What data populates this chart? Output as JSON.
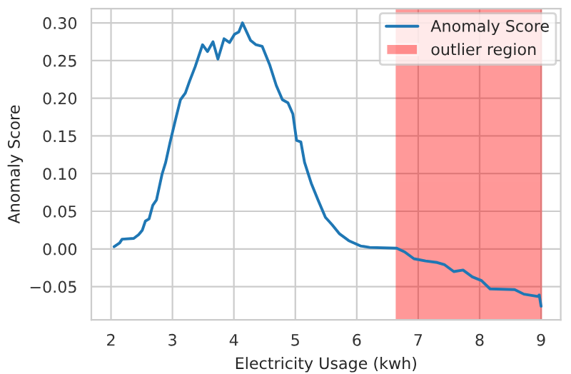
{
  "chart_data": {
    "type": "line",
    "xlabel": "Electricity Usage (kwh)",
    "ylabel": "Anomaly Score",
    "xlim": [
      1.68,
      9.32
    ],
    "ylim": [
      -0.094,
      0.319
    ],
    "xticks": [
      2,
      3,
      4,
      5,
      6,
      7,
      8,
      9
    ],
    "yticks": [
      {
        "value": -0.05,
        "label": "−0.05"
      },
      {
        "value": 0.0,
        "label": "0.00"
      },
      {
        "value": 0.05,
        "label": "0.05"
      },
      {
        "value": 0.1,
        "label": "0.10"
      },
      {
        "value": 0.15,
        "label": "0.15"
      },
      {
        "value": 0.2,
        "label": "0.20"
      },
      {
        "value": 0.25,
        "label": "0.25"
      },
      {
        "value": 0.3,
        "label": "0.30"
      }
    ],
    "grid": true,
    "legend": "top right",
    "series": [
      {
        "name": "Anomaly Score",
        "color": "#1f77b4",
        "x": [
          2.05,
          2.14,
          2.18,
          2.37,
          2.45,
          2.51,
          2.56,
          2.62,
          2.68,
          2.74,
          2.83,
          2.89,
          2.96,
          3.06,
          3.13,
          3.21,
          3.28,
          3.37,
          3.49,
          3.57,
          3.66,
          3.74,
          3.84,
          3.93,
          4.01,
          4.08,
          4.14,
          4.27,
          4.36,
          4.46,
          4.58,
          4.69,
          4.79,
          4.88,
          4.96,
          5.02,
          5.09,
          5.15,
          5.26,
          5.37,
          5.49,
          5.6,
          5.72,
          5.87,
          6.06,
          6.21,
          6.65,
          6.78,
          6.93,
          7.12,
          7.31,
          7.43,
          7.58,
          7.73,
          7.88,
          8.03,
          8.17,
          8.57,
          8.72,
          8.95,
          8.97,
          9.0
        ],
        "values": [
          0.003,
          0.008,
          0.013,
          0.014,
          0.019,
          0.025,
          0.037,
          0.04,
          0.058,
          0.065,
          0.099,
          0.115,
          0.141,
          0.175,
          0.198,
          0.207,
          0.223,
          0.242,
          0.271,
          0.262,
          0.275,
          0.252,
          0.279,
          0.274,
          0.285,
          0.288,
          0.3,
          0.277,
          0.271,
          0.269,
          0.245,
          0.217,
          0.198,
          0.194,
          0.179,
          0.144,
          0.142,
          0.115,
          0.087,
          0.065,
          0.042,
          0.032,
          0.02,
          0.011,
          0.004,
          0.002,
          0.001,
          -0.004,
          -0.013,
          -0.016,
          -0.018,
          -0.021,
          -0.03,
          -0.028,
          -0.037,
          -0.042,
          -0.053,
          -0.054,
          -0.06,
          -0.063,
          -0.061,
          -0.076
        ]
      }
    ],
    "bands": [
      {
        "axis": "x",
        "from": 6.65,
        "to": 9.0,
        "label": "outlier region",
        "color": "#ff0000"
      }
    ]
  }
}
